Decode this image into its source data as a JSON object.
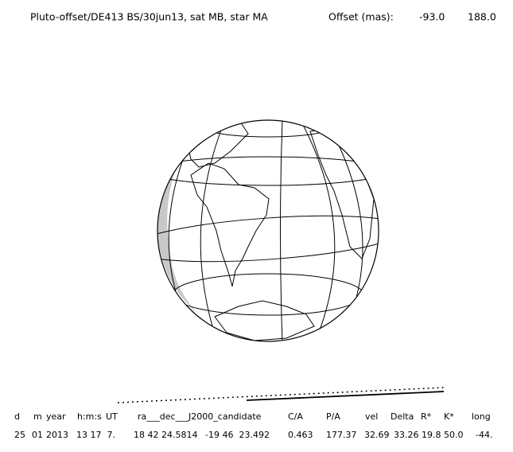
{
  "header": {
    "title": "Pluto-offset/DE413 BS/30jun13, sat MB, star MA",
    "offset_label": "Offset (mas):",
    "offset_x": "-93.0",
    "offset_y": "188.0"
  },
  "table": {
    "headers": [
      "d",
      "m",
      "year",
      "h:m:s",
      "UT",
      "ra___dec___J2000_candidate",
      "C/A",
      "P/A",
      "vel",
      "Delta",
      "R*",
      "K*",
      "long"
    ],
    "row": [
      "25",
      "01",
      "2013",
      "13 17  7.",
      "18 42 24.5814",
      "-19 46  23.492",
      "0.463",
      "177.37",
      "32.69",
      "33.26",
      "19.8",
      "50.0",
      "-44."
    ]
  }
}
